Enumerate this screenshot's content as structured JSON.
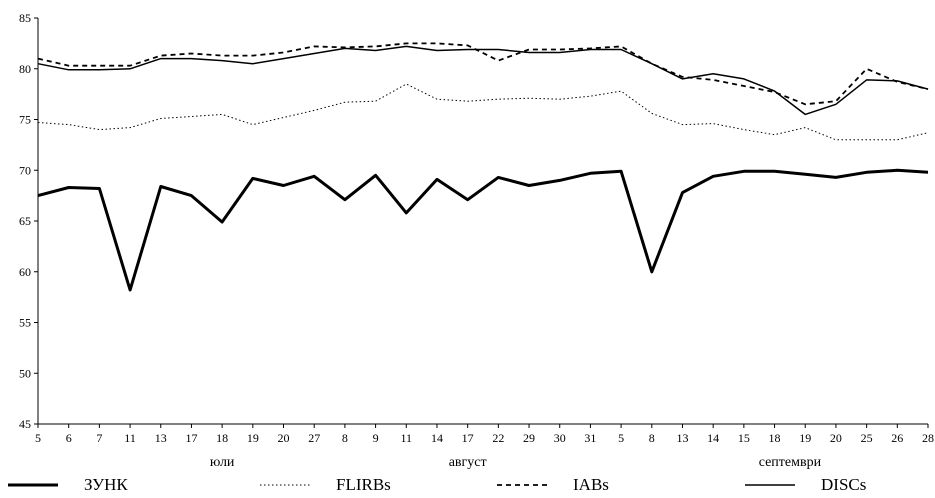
{
  "chart_data": {
    "type": "line",
    "title": "",
    "xlabel": "",
    "ylabel": "",
    "ylim": [
      45,
      85
    ],
    "yticks": [
      45,
      50,
      55,
      60,
      65,
      70,
      75,
      80,
      85
    ],
    "categories": [
      "5",
      "6",
      "7",
      "11",
      "13",
      "17",
      "18",
      "19",
      "20",
      "27",
      "8",
      "9",
      "11",
      "14",
      "17",
      "22",
      "29",
      "30",
      "31",
      "5",
      "8",
      "13",
      "14",
      "15",
      "18",
      "19",
      "20",
      "25",
      "26",
      "28"
    ],
    "month_groups": [
      {
        "label": "юли",
        "center_index": 6
      },
      {
        "label": "август",
        "center_index": 14
      },
      {
        "label": "септември",
        "center_index": 24.5
      }
    ],
    "grid": false,
    "legend_position": "bottom",
    "series": [
      {
        "name": "ЗУНК",
        "style": "thick-solid",
        "values": [
          67.5,
          68.3,
          68.2,
          58.2,
          68.4,
          67.5,
          64.9,
          69.2,
          68.5,
          69.4,
          67.1,
          69.5,
          65.8,
          69.1,
          67.1,
          69.3,
          68.5,
          69.0,
          69.7,
          69.9,
          60.0,
          67.8,
          69.4,
          69.9,
          69.9,
          69.6,
          69.3,
          69.8,
          70.0,
          69.8
        ]
      },
      {
        "name": "FLIRBs",
        "style": "dotted",
        "values": [
          74.7,
          74.5,
          74.0,
          74.2,
          75.1,
          75.3,
          75.5,
          74.5,
          75.2,
          75.9,
          76.7,
          76.8,
          78.5,
          77.0,
          76.8,
          77.0,
          77.1,
          77.0,
          77.3,
          77.8,
          75.6,
          74.5,
          74.6,
          74.0,
          73.5,
          74.2,
          73.0,
          73.0,
          73.0,
          73.7
        ]
      },
      {
        "name": "IABs",
        "style": "dashed",
        "values": [
          81.0,
          80.3,
          80.3,
          80.3,
          81.3,
          81.5,
          81.3,
          81.3,
          81.6,
          82.2,
          82.1,
          82.2,
          82.5,
          82.5,
          82.3,
          80.8,
          81.9,
          81.9,
          82.0,
          82.2,
          80.5,
          79.2,
          78.9,
          78.3,
          77.7,
          76.5,
          76.8,
          80.0,
          78.7,
          78.0
        ]
      },
      {
        "name": "DISCs",
        "style": "solid",
        "values": [
          80.5,
          79.9,
          79.9,
          80.0,
          81.0,
          81.0,
          80.8,
          80.5,
          81.0,
          81.5,
          82.0,
          81.8,
          82.2,
          81.8,
          81.9,
          81.9,
          81.6,
          81.6,
          81.9,
          81.9,
          80.5,
          79.0,
          79.5,
          79.0,
          77.8,
          75.5,
          76.5,
          78.9,
          78.8,
          78.0
        ]
      }
    ]
  }
}
